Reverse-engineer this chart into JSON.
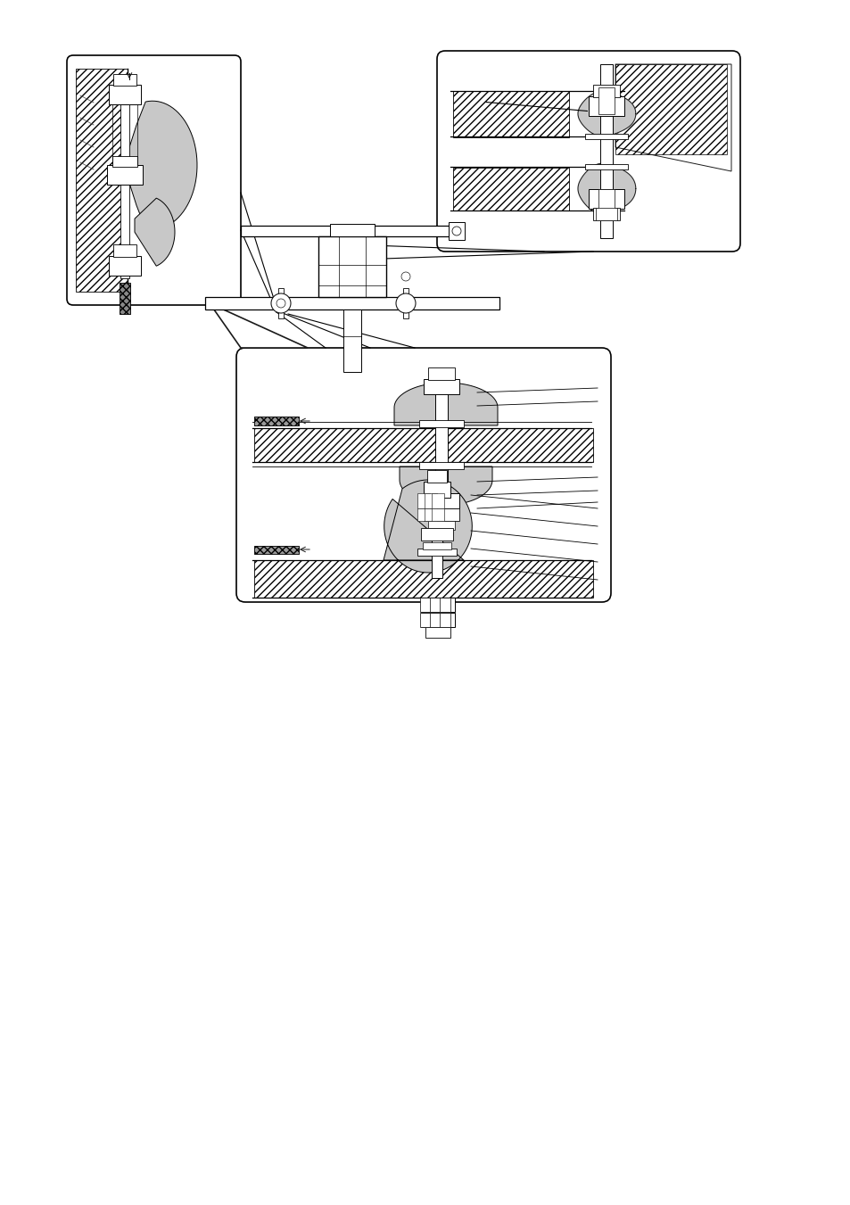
{
  "bg_color": "#ffffff",
  "lc": "#1a1a1a",
  "fig_w": 9.54,
  "fig_h": 13.51,
  "dpi": 100,
  "stipple": "#c8c8c8",
  "hatch_fc": "#e8e8e8"
}
